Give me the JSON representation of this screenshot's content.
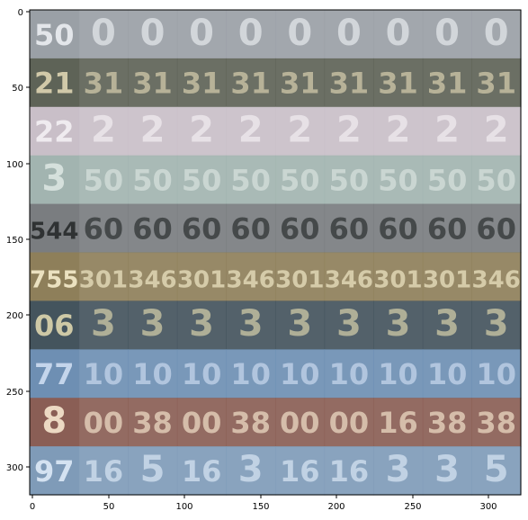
{
  "figure": {
    "xticks": [
      "0",
      "50",
      "100",
      "150",
      "200",
      "250",
      "300"
    ],
    "yticks": [
      "0",
      "50",
      "100",
      "150",
      "200",
      "250",
      "300"
    ]
  },
  "grid": {
    "rows": [
      {
        "first": "50",
        "rest": [
          "0",
          "0",
          "0",
          "0",
          "0",
          "0",
          "0",
          "0",
          "0"
        ],
        "bg": "#9aa0a6",
        "fg": "#e7eaee"
      },
      {
        "first": "21",
        "rest": [
          "31",
          "31",
          "31",
          "31",
          "31",
          "31",
          "31",
          "31",
          "31"
        ],
        "bg": "#5e6357",
        "fg": "#d8cfae"
      },
      {
        "first": "22",
        "rest": [
          "2",
          "2",
          "2",
          "2",
          "2",
          "2",
          "2",
          "2",
          "2"
        ],
        "bg": "#c9bfc8",
        "fg": "#f2eef2"
      },
      {
        "first": "3",
        "rest": [
          "50",
          "50",
          "50",
          "50",
          "50",
          "50",
          "50",
          "50",
          "50"
        ],
        "bg": "#a2b4b0",
        "fg": "#d8e3df"
      },
      {
        "first": "544",
        "rest": [
          "60",
          "60",
          "60",
          "60",
          "60",
          "60",
          "60",
          "60",
          "60"
        ],
        "bg": "#7a7d80",
        "fg": "#2b2f2f"
      },
      {
        "first": "755",
        "rest": [
          "301",
          "346",
          "301",
          "346",
          "301",
          "346",
          "301",
          "301",
          "346"
        ],
        "bg": "#8e7f5a",
        "fg": "#f0e7c6"
      },
      {
        "first": "06",
        "rest": [
          "3",
          "3",
          "3",
          "3",
          "3",
          "3",
          "3",
          "3",
          "3"
        ],
        "bg": "#44545d",
        "fg": "#d6d0aa"
      },
      {
        "first": "77",
        "rest": [
          "10",
          "10",
          "10",
          "10",
          "10",
          "10",
          "10",
          "10",
          "10"
        ],
        "bg": "#6e8fb3",
        "fg": "#c9d9ee"
      },
      {
        "first": "8",
        "rest": [
          "00",
          "38",
          "00",
          "38",
          "00",
          "00",
          "16",
          "38",
          "38"
        ],
        "bg": "#8a5e55",
        "fg": "#f2e0c9"
      },
      {
        "first": "97",
        "rest": [
          "16",
          "5",
          "16",
          "3",
          "16",
          "16",
          "3",
          "3",
          "5"
        ],
        "bg": "#7f9bb8",
        "fg": "#d9e6f5"
      }
    ]
  }
}
